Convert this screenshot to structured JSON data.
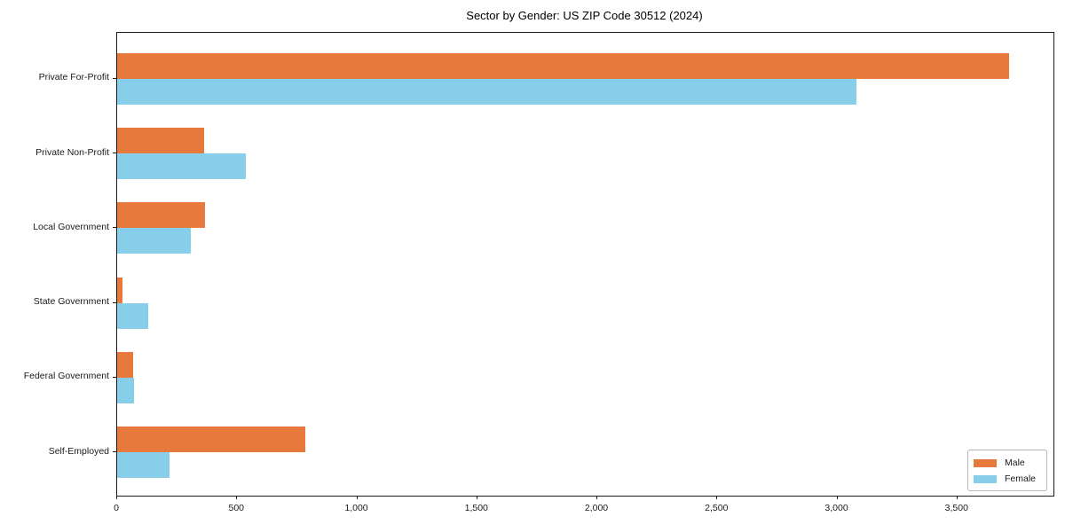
{
  "title": "Sector by Gender: US ZIP Code 30512 (2024)",
  "chart_data": {
    "type": "bar",
    "orientation": "horizontal",
    "title": "Sector by Gender: US ZIP Code 30512 (2024)",
    "categories": [
      "Private For-Profit",
      "Private Non-Profit",
      "Local Government",
      "State Government",
      "Federal Government",
      "Self-Employed"
    ],
    "series": [
      {
        "name": "Male",
        "color": "#E8793C",
        "values": [
          3715,
          364,
          366,
          22,
          68,
          784
        ]
      },
      {
        "name": "Female",
        "color": "#87CEEB",
        "values": [
          3080,
          535,
          308,
          128,
          70,
          219
        ]
      }
    ],
    "xlabel": "",
    "ylabel": "",
    "xlim": [
      0,
      3900
    ],
    "xticks": [
      0,
      500,
      1000,
      1500,
      2000,
      2500,
      3000,
      3500
    ],
    "xtick_labels": [
      "0",
      "500",
      "1,000",
      "1,500",
      "2,000",
      "2,500",
      "3,000",
      "3,500"
    ],
    "grid": false,
    "legend_position": "lower right"
  },
  "legend": {
    "items": [
      {
        "label": "Male",
        "color": "#E8793C"
      },
      {
        "label": "Female",
        "color": "#87CEEB"
      }
    ]
  }
}
